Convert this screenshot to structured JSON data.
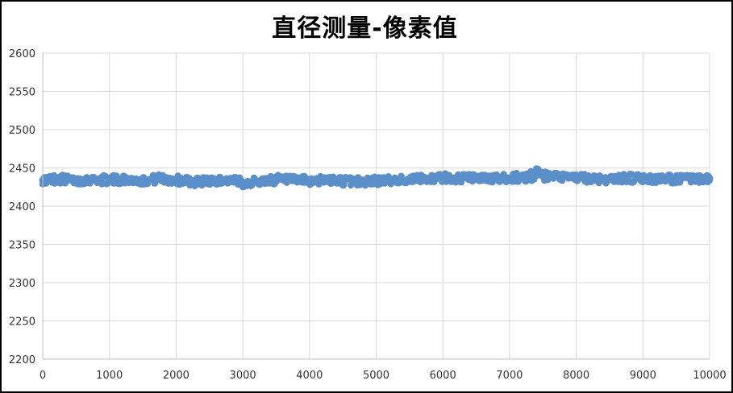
{
  "chart_data": {
    "type": "scatter",
    "title": "直径测量-像素值",
    "xlabel": "",
    "ylabel": "",
    "xlim": [
      0,
      10000
    ],
    "ylim": [
      2200,
      2600
    ],
    "x_ticks": [
      "0",
      "1000",
      "2000",
      "3000",
      "4000",
      "5000",
      "6000",
      "7000",
      "8000",
      "9000",
      "10000"
    ],
    "y_ticks": [
      "2200",
      "2250",
      "2300",
      "2350",
      "2400",
      "2450",
      "2500",
      "2550",
      "2600"
    ],
    "grid": true,
    "legend": "none",
    "marker_color": "#5b8fc9",
    "series": [
      {
        "x": [
          0,
          250,
          500,
          750,
          1000,
          1250,
          1500,
          1750,
          2000,
          2250,
          2500,
          2750,
          3000,
          3250,
          3500,
          3750,
          4000,
          4250,
          4500,
          4750,
          5000,
          5250,
          5500,
          5750,
          6000,
          6250,
          6500,
          6750,
          7000,
          7250,
          7400,
          7500,
          7750,
          8000,
          8250,
          8500,
          8750,
          9000,
          9250,
          9500,
          9750,
          10000
        ],
        "values": [
          2434,
          2436,
          2433,
          2435,
          2434,
          2435,
          2433,
          2436,
          2434,
          2432,
          2433,
          2434,
          2431,
          2432,
          2435,
          2434,
          2433,
          2434,
          2433,
          2432,
          2433,
          2434,
          2435,
          2436,
          2437,
          2436,
          2437,
          2436,
          2437,
          2438,
          2442,
          2439,
          2438,
          2437,
          2436,
          2435,
          2437,
          2436,
          2435,
          2436,
          2435,
          2436
        ],
        "spread": [
          5,
          6,
          5,
          5,
          6,
          5,
          5,
          6,
          6,
          6,
          5,
          5,
          6,
          5,
          6,
          5,
          6,
          5,
          6,
          6,
          6,
          5,
          5,
          5,
          6,
          6,
          5,
          5,
          6,
          6,
          8,
          6,
          5,
          5,
          6,
          5,
          6,
          5,
          5,
          6,
          5,
          5
        ]
      }
    ]
  }
}
